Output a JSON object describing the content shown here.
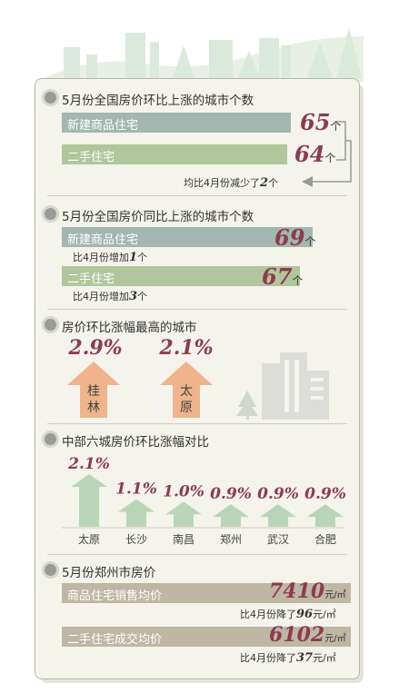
{
  "colors": {
    "bar_teal": "#a3b6af",
    "bar_green": "#b1c69a",
    "bar_tan": "#bdb7a3",
    "accent": "#8d3b4e",
    "arrow_orange": "#efb48b",
    "arrow_green": "#b8d6b6"
  },
  "section1": {
    "title": "5月份全国房价环比上涨的城市个数",
    "rows": [
      {
        "label": "新建商品住宅",
        "value": "65",
        "unit": "个"
      },
      {
        "label": "二手住宅",
        "value": "64",
        "unit": "个"
      }
    ],
    "note_prefix": "均比4月份减少了",
    "note_value": "2",
    "note_suffix": "个"
  },
  "section2": {
    "title": "5月份全国房价同比上涨的城市个数",
    "rows": [
      {
        "label": "新建商品住宅",
        "value": "69",
        "unit": "个",
        "note_prefix": "比4月份增加",
        "note_value": "1",
        "note_suffix": "个"
      },
      {
        "label": "二手住宅",
        "value": "67",
        "unit": "个",
        "note_prefix": "比4月份增加",
        "note_value": "3",
        "note_suffix": "个"
      }
    ]
  },
  "section3": {
    "title": "房价环比涨幅最高的城市",
    "cities": [
      {
        "name_line1": "桂",
        "name_line2": "林",
        "value": "2.9%"
      },
      {
        "name_line1": "太",
        "name_line2": "原",
        "value": "2.1%"
      }
    ]
  },
  "section4": {
    "title": "中部六城房价环比涨幅对比"
  },
  "section5": {
    "title": "5月份郑州市房价",
    "rows": [
      {
        "label": "商品住宅销售均价",
        "value": "7410",
        "unit": "元/㎡",
        "note_prefix": "比4月份降了",
        "note_value": "96",
        "note_suffix": "元/㎡"
      },
      {
        "label": "二手住宅成交均价",
        "value": "6102",
        "unit": "元/㎡",
        "note_prefix": "比4月份降了",
        "note_value": "37",
        "note_suffix": "元/㎡"
      }
    ]
  },
  "chart_data": {
    "type": "bar",
    "title": "中部六城房价环比涨幅对比",
    "categories": [
      "太原",
      "长沙",
      "南昌",
      "郑州",
      "武汉",
      "合肥"
    ],
    "values": [
      2.1,
      1.1,
      1.0,
      0.9,
      0.9,
      0.9
    ],
    "value_labels": [
      "2.1%",
      "1.1%",
      "1.0%",
      "0.9%",
      "0.9%",
      "0.9%"
    ],
    "color": "#b8d6b6"
  }
}
